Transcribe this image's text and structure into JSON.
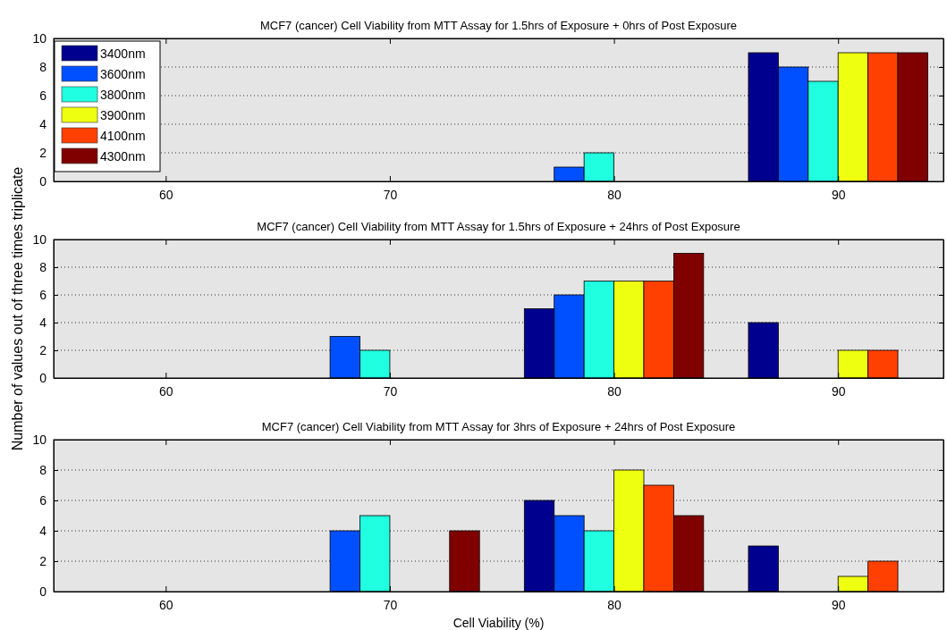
{
  "chart_data": [
    {
      "type": "bar",
      "title": "MCF7 (cancer) Cell Viability from MTT Assay for 1.5hrs of Exposure + 0hrs of Post Exposure",
      "x": [
        60,
        70,
        80,
        90
      ],
      "xlim": [
        55,
        94.7
      ],
      "xticks": [
        60,
        70,
        80,
        90
      ],
      "ylim": [
        0,
        10
      ],
      "yticks": [
        0,
        2,
        4,
        6,
        8,
        10
      ],
      "grid": "y",
      "legend": "top left",
      "series": [
        {
          "name": "3400nm",
          "color": "#00008f",
          "values": [
            0,
            0,
            0,
            9
          ]
        },
        {
          "name": "3600nm",
          "color": "#0050ff",
          "values": [
            0,
            0,
            1,
            8
          ]
        },
        {
          "name": "3800nm",
          "color": "#20ffdf",
          "values": [
            0,
            0,
            2,
            7
          ]
        },
        {
          "name": "3900nm",
          "color": "#efff10",
          "values": [
            0,
            0,
            0,
            9
          ]
        },
        {
          "name": "4100nm",
          "color": "#ff4000",
          "values": [
            0,
            0,
            0,
            9
          ]
        },
        {
          "name": "4300nm",
          "color": "#800000",
          "values": [
            0,
            0,
            0,
            9
          ]
        }
      ]
    },
    {
      "type": "bar",
      "title": "MCF7 (cancer) Cell Viability from MTT Assay for 1.5hrs of Exposure + 24hrs of Post Exposure",
      "ylabel": "Number of values out of three times triplicate",
      "x": [
        60,
        70,
        80,
        90
      ],
      "xlim": [
        55,
        94.7
      ],
      "xticks": [
        60,
        70,
        80,
        90
      ],
      "ylim": [
        0,
        10
      ],
      "yticks": [
        0,
        2,
        4,
        6,
        8,
        10
      ],
      "grid": "y",
      "series": [
        {
          "color": "#00008f",
          "values": [
            0,
            0,
            5,
            4
          ]
        },
        {
          "color": "#0050ff",
          "values": [
            0,
            3,
            6,
            0
          ]
        },
        {
          "color": "#20ffdf",
          "values": [
            0,
            2,
            7,
            0
          ]
        },
        {
          "color": "#efff10",
          "values": [
            0,
            0,
            7,
            2
          ]
        },
        {
          "color": "#ff4000",
          "values": [
            0,
            0,
            7,
            2
          ]
        },
        {
          "color": "#800000",
          "values": [
            0,
            0,
            9,
            0
          ]
        }
      ]
    },
    {
      "type": "bar",
      "title": "MCF7 (cancer) Cell Viability from MTT Assay for 3hrs of Exposure + 24hrs of Post Exposure",
      "xlabel": "Cell Viability (%)",
      "x": [
        60,
        70,
        80,
        90
      ],
      "xlim": [
        55,
        94.7
      ],
      "xticks": [
        60,
        70,
        80,
        90
      ],
      "ylim": [
        0,
        10
      ],
      "yticks": [
        0,
        2,
        4,
        6,
        8,
        10
      ],
      "grid": "y",
      "series": [
        {
          "color": "#00008f",
          "values": [
            0,
            0,
            6,
            3
          ]
        },
        {
          "color": "#0050ff",
          "values": [
            0,
            4,
            5,
            0
          ]
        },
        {
          "color": "#20ffdf",
          "values": [
            0,
            5,
            4,
            0
          ]
        },
        {
          "color": "#efff10",
          "values": [
            0,
            0,
            8,
            1
          ]
        },
        {
          "color": "#ff4000",
          "values": [
            0,
            0,
            7,
            2
          ]
        },
        {
          "color": "#800000",
          "values": [
            0,
            4,
            5,
            0
          ]
        }
      ]
    }
  ]
}
